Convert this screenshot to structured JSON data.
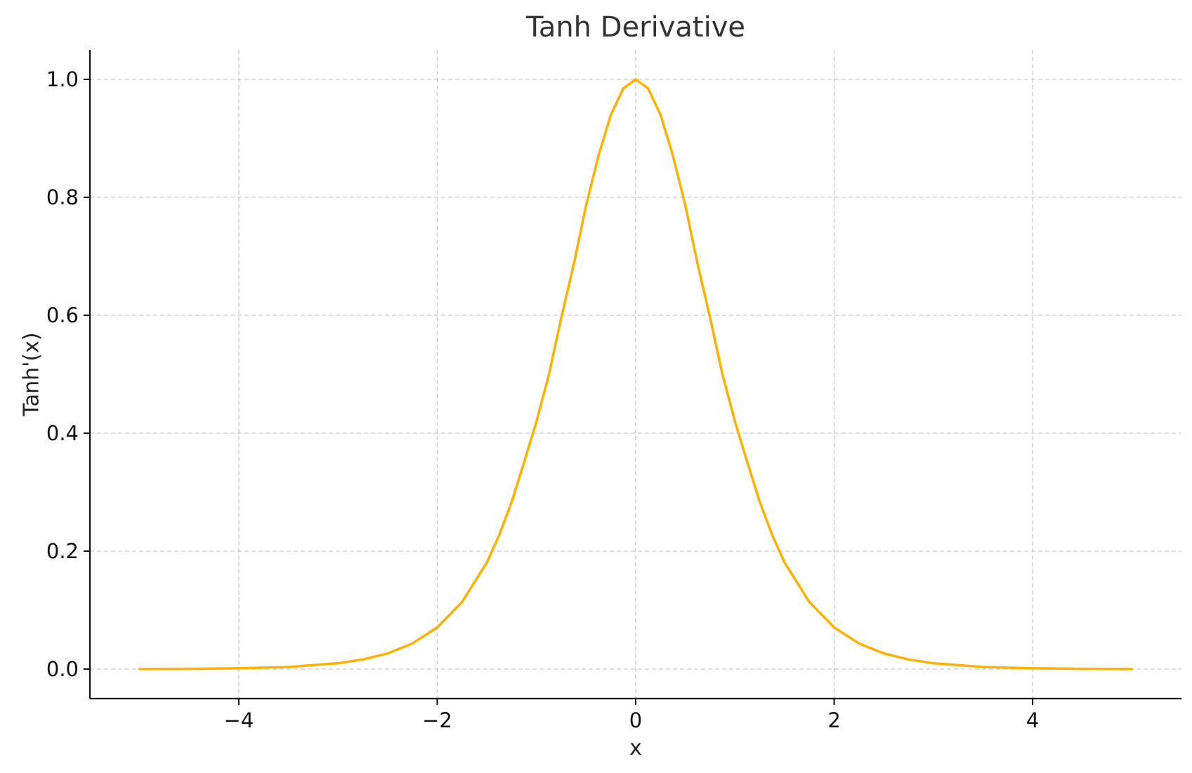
{
  "chart_data": {
    "type": "line",
    "title": "Tanh Derivative",
    "xlabel": "x",
    "ylabel": "Tanh'(x)",
    "xlim": [
      -5.5,
      5.5
    ],
    "ylim": [
      -0.05,
      1.05
    ],
    "xticks": [
      -4,
      -2,
      0,
      2,
      4
    ],
    "xtick_labels": [
      "−4",
      "−2",
      "0",
      "2",
      "4"
    ],
    "yticks": [
      0.0,
      0.2,
      0.4,
      0.6,
      0.8,
      1.0
    ],
    "ytick_labels": [
      "0.0",
      "0.2",
      "0.4",
      "0.6",
      "0.8",
      "1.0"
    ],
    "grid": true,
    "legend": "none",
    "line_color": "#FFB000",
    "series": [
      {
        "x": [
          -5.0,
          -4.5,
          -4.0,
          -3.5,
          -3.0,
          -2.75,
          -2.5,
          -2.25,
          -2.0,
          -1.75,
          -1.5,
          -1.375,
          -1.25,
          -1.125,
          -1.0,
          -0.875,
          -0.75,
          -0.625,
          -0.5,
          -0.375,
          -0.25,
          -0.125,
          0.0,
          0.125,
          0.25,
          0.375,
          0.5,
          0.625,
          0.75,
          0.875,
          1.0,
          1.125,
          1.25,
          1.375,
          1.5,
          1.75,
          2.0,
          2.25,
          2.5,
          2.75,
          3.0,
          3.5,
          4.0,
          4.5,
          5.0
        ],
        "y": [
          0.0002,
          0.0005,
          0.0013,
          0.0036,
          0.0099,
          0.0163,
          0.0266,
          0.0435,
          0.0707,
          0.1138,
          0.1807,
          0.2273,
          0.2837,
          0.3506,
          0.42,
          0.4991,
          0.5959,
          0.6856,
          0.7864,
          0.8705,
          0.9401,
          0.9845,
          1.0,
          0.9845,
          0.9401,
          0.8705,
          0.7864,
          0.6856,
          0.5959,
          0.4991,
          0.42,
          0.3506,
          0.2837,
          0.2273,
          0.1807,
          0.1138,
          0.0707,
          0.0435,
          0.0266,
          0.0163,
          0.0099,
          0.0036,
          0.0013,
          0.0005,
          0.0002
        ]
      }
    ]
  }
}
